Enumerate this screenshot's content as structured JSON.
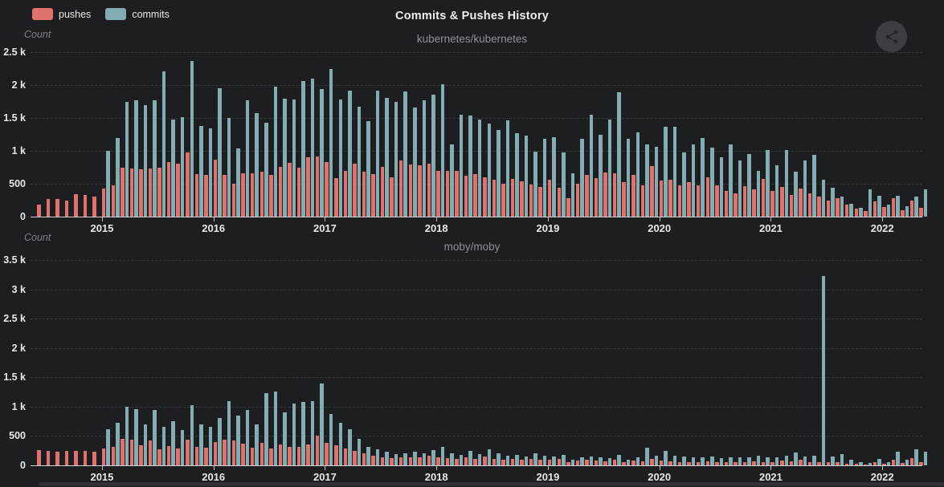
{
  "header": {
    "title": "Commits & Pushes History"
  },
  "legend": {
    "items": [
      {
        "label": "pushes",
        "color": "#e0716c"
      },
      {
        "label": "commits",
        "color": "#84adb2"
      }
    ]
  },
  "share_button": {
    "icon": "share-icon"
  },
  "colors": {
    "background": "#1c1e21",
    "pushes": "#e0716c",
    "commits": "#84adb2",
    "grid": "#36393c",
    "axis": "#ced1d4",
    "title": "#efefef",
    "subtitle": "#8e9296"
  },
  "chart_data": [
    {
      "type": "bar",
      "title": "kubernetes/kubernetes",
      "ylabel": "Count",
      "ylim": [
        0,
        2500
      ],
      "yticks": [
        "0",
        "500",
        "1 k",
        "1.5 k",
        "2 k",
        "2.5 k"
      ],
      "xticks": [
        "2015",
        "2016",
        "2017",
        "2018",
        "2019",
        "2020",
        "2021",
        "2022"
      ],
      "grid": "horizontal-dashed",
      "legend_position": "top-left",
      "x": [
        "2014-06",
        "2014-07",
        "2014-08",
        "2014-09",
        "2014-10",
        "2014-11",
        "2014-12",
        "2015-01",
        "2015-02",
        "2015-03",
        "2015-04",
        "2015-05",
        "2015-06",
        "2015-07",
        "2015-08",
        "2015-09",
        "2015-10",
        "2015-11",
        "2015-12",
        "2016-01",
        "2016-02",
        "2016-03",
        "2016-04",
        "2016-05",
        "2016-06",
        "2016-07",
        "2016-08",
        "2016-09",
        "2016-10",
        "2016-11",
        "2016-12",
        "2017-01",
        "2017-02",
        "2017-03",
        "2017-04",
        "2017-05",
        "2017-06",
        "2017-07",
        "2017-08",
        "2017-09",
        "2017-10",
        "2017-11",
        "2017-12",
        "2018-01",
        "2018-02",
        "2018-03",
        "2018-04",
        "2018-05",
        "2018-06",
        "2018-07",
        "2018-08",
        "2018-09",
        "2018-10",
        "2018-11",
        "2018-12",
        "2019-01",
        "2019-02",
        "2019-03",
        "2019-04",
        "2019-05",
        "2019-06",
        "2019-07",
        "2019-08",
        "2019-09",
        "2019-10",
        "2019-11",
        "2019-12",
        "2020-01",
        "2020-02",
        "2020-03",
        "2020-04",
        "2020-05",
        "2020-06",
        "2020-07",
        "2020-08",
        "2020-09",
        "2020-10",
        "2020-11",
        "2020-12",
        "2021-01",
        "2021-02",
        "2021-03",
        "2021-04",
        "2021-05",
        "2021-06",
        "2021-07",
        "2021-08",
        "2021-09",
        "2021-10",
        "2021-11",
        "2021-12",
        "2022-01",
        "2022-02",
        "2022-03",
        "2022-04",
        "2022-05"
      ],
      "series": [
        {
          "name": "pushes",
          "color": "#e0716c",
          "values": [
            180,
            270,
            270,
            250,
            340,
            330,
            300,
            430,
            480,
            740,
            730,
            720,
            730,
            740,
            830,
            810,
            970,
            650,
            640,
            860,
            640,
            500,
            660,
            660,
            680,
            640,
            760,
            820,
            750,
            900,
            920,
            830,
            580,
            700,
            810,
            680,
            650,
            760,
            600,
            850,
            790,
            780,
            800,
            700,
            700,
            690,
            620,
            650,
            600,
            560,
            500,
            570,
            540,
            490,
            450,
            560,
            440,
            280,
            500,
            630,
            590,
            670,
            660,
            530,
            640,
            470,
            770,
            550,
            560,
            470,
            520,
            470,
            600,
            480,
            390,
            350,
            460,
            410,
            570,
            390,
            450,
            330,
            430,
            350,
            300,
            240,
            280,
            180,
            120,
            90,
            230,
            150,
            280,
            100,
            240,
            130
          ]
        },
        {
          "name": "commits",
          "color": "#84adb2",
          "values": [
            0,
            0,
            0,
            0,
            0,
            0,
            0,
            1000,
            1190,
            1740,
            1770,
            1700,
            1770,
            2210,
            1470,
            1510,
            2360,
            1380,
            1340,
            1950,
            1500,
            1040,
            1770,
            1570,
            1430,
            1970,
            1790,
            1780,
            2060,
            2100,
            1940,
            2250,
            1780,
            1910,
            1670,
            1450,
            1920,
            1810,
            1750,
            1900,
            1660,
            1770,
            1850,
            2010,
            1100,
            1550,
            1540,
            1480,
            1420,
            1320,
            1460,
            1270,
            1230,
            990,
            1180,
            1210,
            980,
            660,
            1180,
            1550,
            1250,
            1480,
            1890,
            1180,
            1280,
            1100,
            1060,
            1370,
            1360,
            980,
            1100,
            1190,
            1050,
            900,
            1100,
            850,
            950,
            700,
            1010,
            780,
            1010,
            680,
            850,
            940,
            560,
            440,
            300,
            190,
            130,
            420,
            320,
            180,
            320,
            160,
            310,
            420
          ]
        }
      ]
    },
    {
      "type": "bar",
      "title": "moby/moby",
      "ylabel": "Count",
      "ylim": [
        0,
        3500
      ],
      "yticks": [
        "0",
        "500",
        "1 k",
        "1.5 k",
        "2 k",
        "2.5 k",
        "3 k",
        "3.5 k"
      ],
      "xticks": [
        "2015",
        "2016",
        "2017",
        "2018",
        "2019",
        "2020",
        "2021",
        "2022"
      ],
      "grid": "horizontal-dashed",
      "legend_position": "top-left",
      "x": [
        "2014-06",
        "2014-07",
        "2014-08",
        "2014-09",
        "2014-10",
        "2014-11",
        "2014-12",
        "2015-01",
        "2015-02",
        "2015-03",
        "2015-04",
        "2015-05",
        "2015-06",
        "2015-07",
        "2015-08",
        "2015-09",
        "2015-10",
        "2015-11",
        "2015-12",
        "2016-01",
        "2016-02",
        "2016-03",
        "2016-04",
        "2016-05",
        "2016-06",
        "2016-07",
        "2016-08",
        "2016-09",
        "2016-10",
        "2016-11",
        "2016-12",
        "2017-01",
        "2017-02",
        "2017-03",
        "2017-04",
        "2017-05",
        "2017-06",
        "2017-07",
        "2017-08",
        "2017-09",
        "2017-10",
        "2017-11",
        "2017-12",
        "2018-01",
        "2018-02",
        "2018-03",
        "2018-04",
        "2018-05",
        "2018-06",
        "2018-07",
        "2018-08",
        "2018-09",
        "2018-10",
        "2018-11",
        "2018-12",
        "2019-01",
        "2019-02",
        "2019-03",
        "2019-04",
        "2019-05",
        "2019-06",
        "2019-07",
        "2019-08",
        "2019-09",
        "2019-10",
        "2019-11",
        "2019-12",
        "2020-01",
        "2020-02",
        "2020-03",
        "2020-04",
        "2020-05",
        "2020-06",
        "2020-07",
        "2020-08",
        "2020-09",
        "2020-10",
        "2020-11",
        "2020-12",
        "2021-01",
        "2021-02",
        "2021-03",
        "2021-04",
        "2021-05",
        "2021-06",
        "2021-07",
        "2021-08",
        "2021-09",
        "2021-10",
        "2021-11",
        "2021-12",
        "2022-01",
        "2022-02",
        "2022-03",
        "2022-04",
        "2022-05"
      ],
      "series": [
        {
          "name": "pushes",
          "color": "#e0716c",
          "values": [
            260,
            250,
            230,
            240,
            250,
            240,
            230,
            290,
            310,
            450,
            440,
            340,
            420,
            280,
            330,
            290,
            440,
            320,
            300,
            390,
            440,
            420,
            370,
            300,
            380,
            290,
            350,
            310,
            320,
            350,
            500,
            380,
            340,
            290,
            250,
            210,
            160,
            140,
            120,
            130,
            130,
            130,
            170,
            140,
            120,
            110,
            130,
            110,
            150,
            110,
            100,
            110,
            90,
            110,
            100,
            90,
            110,
            60,
            80,
            90,
            80,
            70,
            100,
            60,
            80,
            70,
            110,
            80,
            70,
            60,
            60,
            60,
            70,
            50,
            60,
            60,
            60,
            70,
            60,
            60,
            80,
            70,
            90,
            60,
            60,
            50,
            50,
            30,
            30,
            20,
            50,
            30,
            90,
            40,
            120,
            50
          ]
        },
        {
          "name": "commits",
          "color": "#84adb2",
          "values": [
            0,
            0,
            0,
            0,
            0,
            0,
            0,
            620,
            720,
            1000,
            960,
            700,
            950,
            650,
            750,
            600,
            1030,
            700,
            650,
            800,
            1100,
            850,
            950,
            700,
            1230,
            1260,
            900,
            1050,
            1080,
            1100,
            1390,
            880,
            720,
            620,
            450,
            320,
            280,
            230,
            190,
            200,
            230,
            200,
            260,
            310,
            210,
            180,
            240,
            190,
            280,
            200,
            160,
            180,
            150,
            200,
            160,
            150,
            180,
            100,
            130,
            150,
            130,
            120,
            180,
            100,
            140,
            300,
            160,
            240,
            160,
            150,
            130,
            130,
            150,
            120,
            140,
            130,
            130,
            160,
            130,
            130,
            170,
            220,
            150,
            160,
            3220,
            150,
            190,
            90,
            60,
            40,
            110,
            50,
            230,
            90,
            280,
            230
          ]
        }
      ]
    }
  ]
}
